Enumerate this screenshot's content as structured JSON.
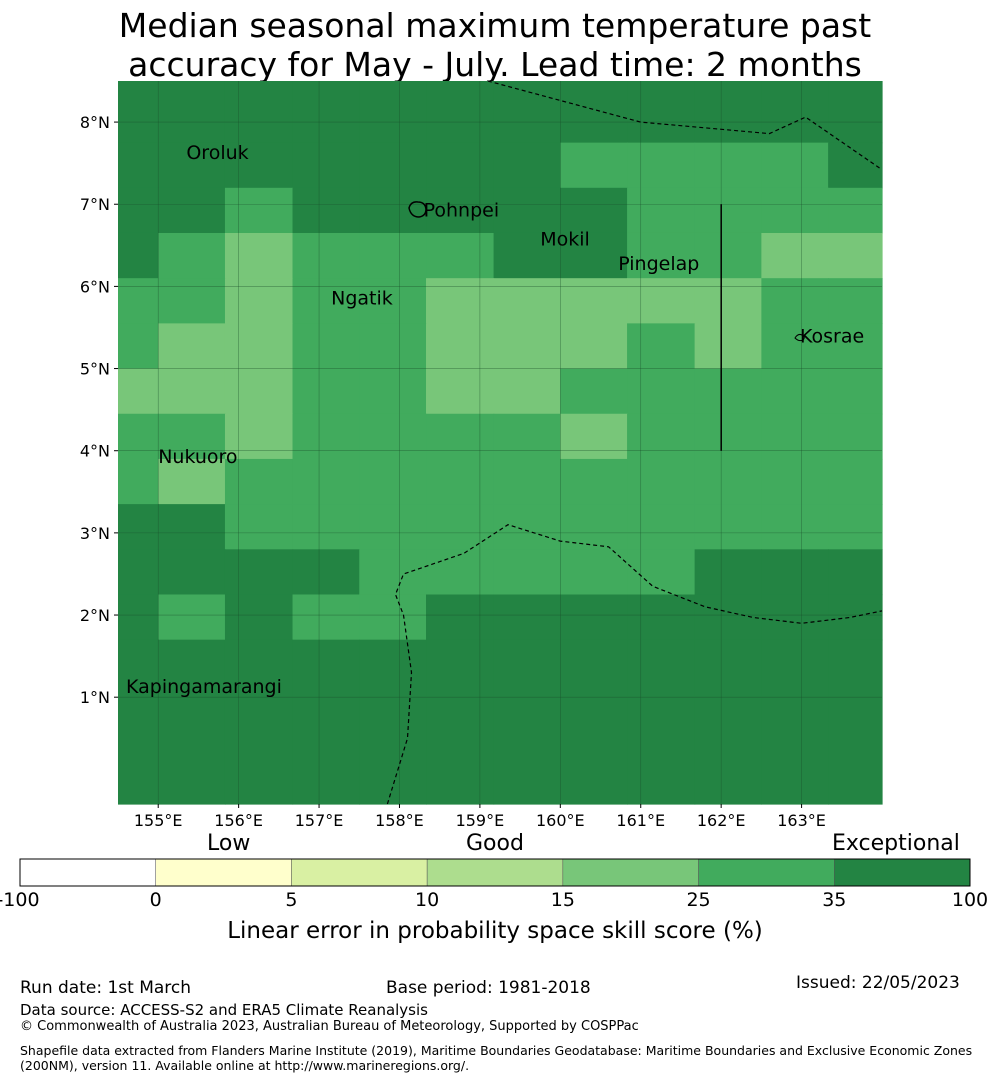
{
  "title": {
    "line1": "Median seasonal maximum temperature past",
    "line2": "accuracy for May - July. Lead time: 2 months"
  },
  "map": {
    "lon_range": [
      154.5,
      164.0
    ],
    "lat_range": [
      -0.3,
      8.5
    ],
    "lat_ticks": [
      {
        "value": 1,
        "label": "1°N"
      },
      {
        "value": 2,
        "label": "2°N"
      },
      {
        "value": 3,
        "label": "3°N"
      },
      {
        "value": 4,
        "label": "4°N"
      },
      {
        "value": 5,
        "label": "5°N"
      },
      {
        "value": 6,
        "label": "6°N"
      },
      {
        "value": 7,
        "label": "7°N"
      },
      {
        "value": 8,
        "label": "8°N"
      }
    ],
    "lon_ticks": [
      {
        "value": 155,
        "label": "155°E"
      },
      {
        "value": 156,
        "label": "156°E"
      },
      {
        "value": 157,
        "label": "157°E"
      },
      {
        "value": 158,
        "label": "158°E"
      },
      {
        "value": 159,
        "label": "159°E"
      },
      {
        "value": 160,
        "label": "160°E"
      },
      {
        "value": 161,
        "label": "161°E"
      },
      {
        "value": 162,
        "label": "162°E"
      },
      {
        "value": 163,
        "label": "163°E"
      }
    ],
    "cell_edges_lon": [
      154.5,
      155.0,
      155.83,
      156.67,
      157.5,
      158.33,
      159.17,
      160.0,
      160.83,
      161.67,
      162.5,
      163.33,
      164.0
    ],
    "cell_edges_lat": [
      8.5,
      7.75,
      7.2,
      6.65,
      6.1,
      5.55,
      5.0,
      4.45,
      3.9,
      3.35,
      2.8,
      2.25,
      1.7,
      -0.3
    ],
    "skill_classes": [
      "A",
      "A",
      "A",
      "A",
      "A",
      "A",
      "A",
      "A",
      "A",
      "A",
      "A",
      "A",
      "A",
      "A",
      "A",
      "A",
      "A",
      "A",
      "A",
      "M",
      "M",
      "M",
      "M",
      "A",
      "A",
      "A",
      "M",
      "A",
      "A",
      "A",
      "A",
      "A",
      "M",
      "M",
      "M",
      "M",
      "A",
      "M",
      "L",
      "M",
      "M",
      "M",
      "A",
      "A",
      "M",
      "M",
      "L",
      "L",
      "M",
      "M",
      "L",
      "M",
      "M",
      "L",
      "L",
      "L",
      "L",
      "L",
      "M",
      "M",
      "M",
      "L",
      "L",
      "M",
      "M",
      "L",
      "L",
      "L",
      "M",
      "L",
      "M",
      "M",
      "L",
      "L",
      "L",
      "M",
      "M",
      "L",
      "L",
      "M",
      "M",
      "M",
      "M",
      "M",
      "M",
      "M",
      "L",
      "M",
      "M",
      "M",
      "M",
      "L",
      "M",
      "M",
      "M",
      "M",
      "M",
      "L",
      "M",
      "M",
      "M",
      "M",
      "M",
      "M",
      "M",
      "M",
      "M",
      "M",
      "A",
      "A",
      "M",
      "M",
      "M",
      "M",
      "M",
      "M",
      "M",
      "M",
      "M",
      "M",
      "A",
      "A",
      "A",
      "A",
      "M",
      "M",
      "M",
      "M",
      "M",
      "A",
      "A",
      "A",
      "A",
      "M",
      "A",
      "M",
      "M",
      "A",
      "A",
      "A",
      "A",
      "A",
      "A",
      "A",
      "A",
      "A",
      "A",
      "A",
      "A",
      "A",
      "A",
      "A",
      "A",
      "A",
      "A",
      "A"
    ],
    "class_colors": {
      "A": "#238443",
      "M": "#41ab5d",
      "L": "#78c679"
    },
    "islands": [
      {
        "name": "Oroluk",
        "lon": 155.35,
        "lat": 7.55
      },
      {
        "name": "Pohnpei",
        "lon": 158.3,
        "lat": 6.85
      },
      {
        "name": "Mokil",
        "lon": 159.75,
        "lat": 6.5
      },
      {
        "name": "Pingelap",
        "lon": 160.72,
        "lat": 6.2
      },
      {
        "name": "Ngatik",
        "lon": 157.15,
        "lat": 5.78
      },
      {
        "name": "Kosrae",
        "lon": 162.98,
        "lat": 5.32
      },
      {
        "name": "Nukuoro",
        "lon": 155.0,
        "lat": 3.85
      },
      {
        "name": "Kapingamarangi",
        "lon": 154.6,
        "lat": 1.05
      }
    ],
    "eez_boundary_north": [
      [
        159.1,
        8.5
      ],
      [
        161.0,
        8.0
      ],
      [
        162.6,
        7.86
      ],
      [
        163.05,
        8.06
      ],
      [
        164.0,
        7.42
      ]
    ],
    "eez_boundary_south": [
      [
        157.85,
        -0.3
      ],
      [
        158.1,
        0.5
      ],
      [
        158.15,
        1.3
      ],
      [
        158.05,
        2.0
      ],
      [
        157.95,
        2.25
      ],
      [
        158.05,
        2.5
      ],
      [
        158.8,
        2.75
      ],
      [
        159.35,
        3.1
      ],
      [
        160.0,
        2.9
      ],
      [
        160.6,
        2.83
      ],
      [
        161.15,
        2.35
      ],
      [
        161.8,
        2.1
      ],
      [
        162.4,
        1.97
      ],
      [
        163.0,
        1.9
      ],
      [
        163.6,
        1.97
      ],
      [
        164.0,
        2.05
      ]
    ],
    "eez_boundary_vertical": [
      [
        162.0,
        4.0
      ],
      [
        162.0,
        7.0
      ]
    ]
  },
  "legend": {
    "categories": {
      "low": "Low",
      "good": "Good",
      "exceptional": "Exceptional"
    },
    "tick_labels": [
      "-100",
      "0",
      "5",
      "10",
      "15",
      "25",
      "35",
      "100"
    ],
    "bin_colors": [
      "#ffffff",
      "#ffffcc",
      "#d9f0a3",
      "#addd8e",
      "#78c679",
      "#41ab5d",
      "#238443"
    ],
    "title": "Linear error in probability space skill score (%)"
  },
  "footer": {
    "run_date": "Run date: 1st March",
    "base_period": "Base period: 1981-2018",
    "issued": "Issued: 22/05/2023",
    "data_source": "Data source: ACCESS-S2 and ERA5 Climate Reanalysis",
    "copyright": "© Commonwealth of Australia 2023, Australian Bureau of Meteorology, Supported by COSPPac",
    "shapefile_line1": "Shapefile data extracted from Flanders Marine Institute (2019), Maritime Boundaries Geodatabase: Maritime Boundaries and Exclusive Economic Zones",
    "shapefile_line2": "(200NM), version 11. Available online at http://www.marineregions.org/."
  }
}
